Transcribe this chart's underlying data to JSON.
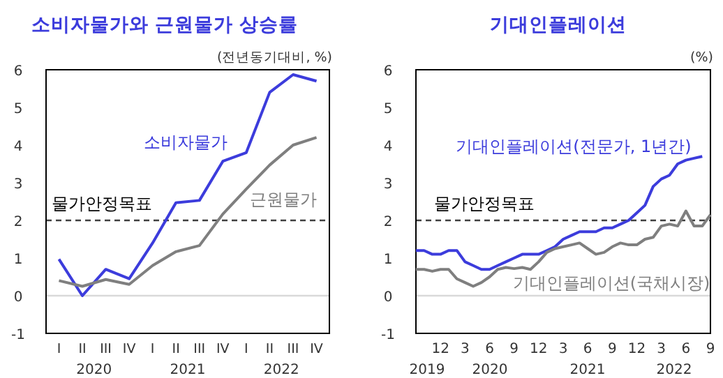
{
  "chart_data": [
    {
      "type": "line",
      "title": "소비자물가와 근원물가 상승률",
      "ylabel": "(전년동기대비, %)",
      "categories": [
        "I",
        "II",
        "III",
        "IV",
        "I",
        "II",
        "III",
        "IV",
        "I",
        "II",
        "III",
        "IV"
      ],
      "series": [
        {
          "name": "소비자물가",
          "color": "#3c3cdc",
          "values": [
            0.97,
            0.0,
            0.7,
            0.45,
            1.4,
            2.47,
            2.53,
            3.57,
            3.8,
            5.4,
            5.87,
            5.7
          ]
        },
        {
          "name": "근원물가",
          "color": "#7f7f7f",
          "values": [
            0.4,
            0.25,
            0.43,
            0.3,
            0.8,
            1.17,
            1.33,
            2.17,
            2.83,
            3.47,
            4.0,
            4.2
          ]
        }
      ],
      "ylim": [
        -1,
        6
      ],
      "yticks": [
        -1,
        0,
        1,
        2,
        3,
        4,
        5,
        6
      ],
      "ref_lines": [
        {
          "axis": "y",
          "value": 2,
          "label": "물가안정목표",
          "color": "#404040",
          "line_style": "dashed"
        },
        {
          "axis": "y",
          "value": 0,
          "color": "#d9d9d9",
          "line_style": "solid"
        }
      ],
      "annotations": [
        "2020",
        "2021",
        "2022"
      ],
      "legend": false,
      "grid": false,
      "marker": "none",
      "line_style": "solid"
    },
    {
      "type": "line",
      "title": "기대인플레이션",
      "ylabel": "(%)",
      "series": [
        {
          "name": "기대인플레이션(전문가, 1년간)",
          "color": "#3c3cdc",
          "x": [
            "2019-09",
            "2019-10",
            "2019-11",
            "2019-12",
            "2020-01",
            "2020-02",
            "2020-03",
            "2020-04",
            "2020-05",
            "2020-06",
            "2020-07",
            "2020-08",
            "2020-09",
            "2020-10",
            "2020-11",
            "2020-12",
            "2021-01",
            "2021-02",
            "2021-03",
            "2021-04",
            "2021-05",
            "2021-06",
            "2021-07",
            "2021-08",
            "2021-09",
            "2021-10",
            "2021-11",
            "2021-12",
            "2022-01",
            "2022-02",
            "2022-03",
            "2022-04",
            "2022-05",
            "2022-06",
            "2022-07",
            "2022-08"
          ],
          "values": [
            1.2,
            1.2,
            1.1,
            1.1,
            1.2,
            1.2,
            0.9,
            0.8,
            0.7,
            0.7,
            0.8,
            0.9,
            1.0,
            1.1,
            1.1,
            1.1,
            1.2,
            1.3,
            1.5,
            1.6,
            1.7,
            1.7,
            1.7,
            1.8,
            1.8,
            1.9,
            2.0,
            2.2,
            2.4,
            2.9,
            3.1,
            3.2,
            3.5,
            3.6,
            3.65,
            3.7
          ]
        },
        {
          "name": "기대인플레이션(국채시장)",
          "color": "#7f7f7f",
          "x": [
            "2019-09",
            "2019-10",
            "2019-11",
            "2019-12",
            "2020-01",
            "2020-02",
            "2020-03",
            "2020-04",
            "2020-05",
            "2020-06",
            "2020-07",
            "2020-08",
            "2020-09",
            "2020-10",
            "2020-11",
            "2020-12",
            "2021-01",
            "2021-02",
            "2021-03",
            "2021-04",
            "2021-05",
            "2021-06",
            "2021-07",
            "2021-08",
            "2021-09",
            "2021-10",
            "2021-11",
            "2021-12",
            "2022-01",
            "2022-02",
            "2022-03",
            "2022-04",
            "2022-05",
            "2022-06",
            "2022-07",
            "2022-08",
            "2022-09"
          ],
          "values": [
            0.7,
            0.7,
            0.65,
            0.7,
            0.7,
            0.45,
            0.35,
            0.25,
            0.35,
            0.5,
            0.7,
            0.75,
            0.72,
            0.75,
            0.7,
            0.9,
            1.15,
            1.25,
            1.3,
            1.35,
            1.4,
            1.25,
            1.1,
            1.15,
            1.3,
            1.4,
            1.35,
            1.35,
            1.5,
            1.55,
            1.85,
            1.9,
            1.85,
            2.25,
            1.85,
            1.85,
            2.15
          ]
        }
      ],
      "xlim": [
        "2019-09",
        "2022-09"
      ],
      "xticks": [
        {
          "value": "2019-12",
          "label": "12"
        },
        {
          "value": "2020-03",
          "label": "3"
        },
        {
          "value": "2020-06",
          "label": "6"
        },
        {
          "value": "2020-09",
          "label": "9"
        },
        {
          "value": "2020-12",
          "label": "12"
        },
        {
          "value": "2021-03",
          "label": "3"
        },
        {
          "value": "2021-06",
          "label": "6"
        },
        {
          "value": "2021-09",
          "label": "9"
        },
        {
          "value": "2021-12",
          "label": "12"
        },
        {
          "value": "2022-03",
          "label": "3"
        },
        {
          "value": "2022-06",
          "label": "6"
        },
        {
          "value": "2022-09",
          "label": "9"
        }
      ],
      "ylim": [
        -1,
        6
      ],
      "yticks": [
        -1,
        0,
        1,
        2,
        3,
        4,
        5,
        6
      ],
      "ref_lines": [
        {
          "axis": "y",
          "value": 2,
          "label": "물가안정목표",
          "color": "#404040",
          "line_style": "dashed"
        },
        {
          "axis": "y",
          "value": 0,
          "color": "#d9d9d9",
          "line_style": "solid"
        }
      ],
      "annotations": [
        "2019",
        "2020",
        "2021",
        "2022"
      ],
      "legend": false,
      "grid": false,
      "marker": "none",
      "line_style": "solid"
    }
  ]
}
